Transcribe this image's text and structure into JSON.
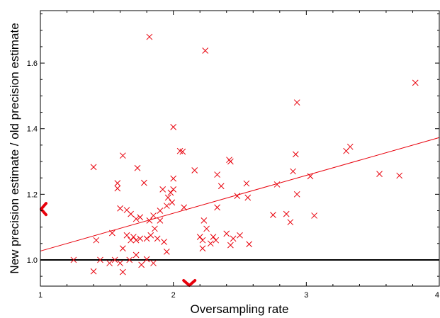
{
  "chart_data": {
    "type": "scatter",
    "title": "",
    "xlabel": "Oversampling rate",
    "ylabel": "New precision estimate / old precision estimate",
    "xlim": [
      1,
      4
    ],
    "ylim": [
      0.92,
      1.76
    ],
    "xticks": [
      1,
      2,
      3,
      4
    ],
    "xtick_labels": [
      "1",
      "2",
      "3",
      "4"
    ],
    "yticks": [
      1.0,
      1.2,
      1.4,
      1.6
    ],
    "ytick_labels": [
      "1.0",
      "1.2",
      "1.4",
      "1.6"
    ],
    "grid": false,
    "legend": "none",
    "colors": {
      "points": "#e8000b",
      "fit": "#e8000b",
      "reference": "#000000",
      "markers": "#e8000b"
    },
    "reference_line": {
      "y": 1.0
    },
    "fit_line": {
      "x": [
        1,
        4
      ],
      "y": [
        1.027,
        1.373
      ]
    },
    "marginal_markers": {
      "x_mean": 2.12,
      "y_mean": 1.155
    },
    "series": [
      {
        "marker": "x",
        "points": [
          [
            1.25,
            1.0
          ],
          [
            1.4,
            1.283
          ],
          [
            1.4,
            0.965
          ],
          [
            1.42,
            1.06
          ],
          [
            1.45,
            1.0
          ],
          [
            1.52,
            0.99
          ],
          [
            1.54,
            1.082
          ],
          [
            1.56,
            1.0
          ],
          [
            1.58,
            1.234
          ],
          [
            1.58,
            1.218
          ],
          [
            1.6,
            1.157
          ],
          [
            1.6,
            0.99
          ],
          [
            1.62,
            1.318
          ],
          [
            1.62,
            1.035
          ],
          [
            1.62,
            0.963
          ],
          [
            1.65,
            1.152
          ],
          [
            1.65,
            1.075
          ],
          [
            1.67,
            1.0
          ],
          [
            1.68,
            1.06
          ],
          [
            1.68,
            1.14
          ],
          [
            1.7,
            1.07
          ],
          [
            1.72,
            1.125
          ],
          [
            1.72,
            1.06
          ],
          [
            1.72,
            1.015
          ],
          [
            1.73,
            1.28
          ],
          [
            1.75,
            1.13
          ],
          [
            1.75,
            1.065
          ],
          [
            1.76,
            0.985
          ],
          [
            1.78,
            1.235
          ],
          [
            1.8,
            1.065
          ],
          [
            1.8,
            1.002
          ],
          [
            1.82,
            1.68
          ],
          [
            1.82,
            1.12
          ],
          [
            1.83,
            1.075
          ],
          [
            1.85,
            0.99
          ],
          [
            1.85,
            1.135
          ],
          [
            1.86,
            1.095
          ],
          [
            1.88,
            1.065
          ],
          [
            1.9,
            1.12
          ],
          [
            1.9,
            1.15
          ],
          [
            1.92,
            1.215
          ],
          [
            1.93,
            1.055
          ],
          [
            1.95,
            1.165
          ],
          [
            1.95,
            1.025
          ],
          [
            1.96,
            1.19
          ],
          [
            1.98,
            1.205
          ],
          [
            1.99,
            1.175
          ],
          [
            2.0,
            1.405
          ],
          [
            2.0,
            1.248
          ],
          [
            2.0,
            1.215
          ],
          [
            2.05,
            1.332
          ],
          [
            2.07,
            1.33
          ],
          [
            2.08,
            1.16
          ],
          [
            2.16,
            1.273
          ],
          [
            2.2,
            1.07
          ],
          [
            2.22,
            1.035
          ],
          [
            2.22,
            1.06
          ],
          [
            2.23,
            1.12
          ],
          [
            2.24,
            1.638
          ],
          [
            2.25,
            1.095
          ],
          [
            2.28,
            1.05
          ],
          [
            2.3,
            1.07
          ],
          [
            2.32,
            1.06
          ],
          [
            2.33,
            1.26
          ],
          [
            2.33,
            1.16
          ],
          [
            2.36,
            1.225
          ],
          [
            2.4,
            1.08
          ],
          [
            2.42,
            1.305
          ],
          [
            2.43,
            1.3
          ],
          [
            2.43,
            1.045
          ],
          [
            2.45,
            1.065
          ],
          [
            2.48,
            1.195
          ],
          [
            2.5,
            1.075
          ],
          [
            2.55,
            1.233
          ],
          [
            2.56,
            1.19
          ],
          [
            2.57,
            1.048
          ],
          [
            2.75,
            1.137
          ],
          [
            2.78,
            1.23
          ],
          [
            2.85,
            1.14
          ],
          [
            2.88,
            1.115
          ],
          [
            2.9,
            1.27
          ],
          [
            2.92,
            1.322
          ],
          [
            2.93,
            1.2
          ],
          [
            2.93,
            1.48
          ],
          [
            3.03,
            1.255
          ],
          [
            3.06,
            1.135
          ],
          [
            3.3,
            1.332
          ],
          [
            3.33,
            1.345
          ],
          [
            3.55,
            1.262
          ],
          [
            3.7,
            1.257
          ],
          [
            3.82,
            1.54
          ]
        ]
      }
    ]
  }
}
